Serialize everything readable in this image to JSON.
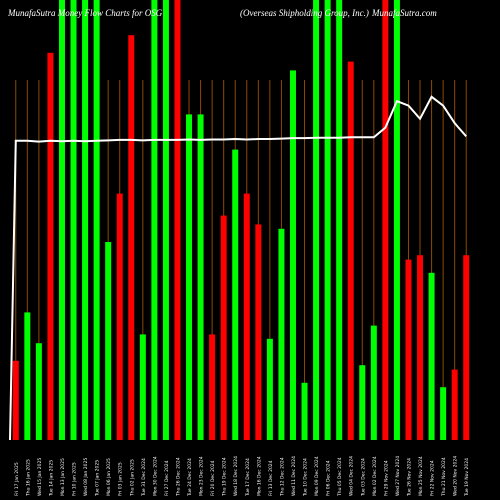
{
  "header": {
    "left": "MunafaSutra Money Flow  Charts for OSG",
    "middle": "(Overseas Shipholding Group, Inc.)",
    "right": "MunafaSutra.com"
  },
  "chart_data": {
    "type": "bar",
    "title": "MunafaSutra Money Flow  Charts for OSG",
    "subtitle": "(Overseas Shipholding Group, Inc.)",
    "ylim": [
      0,
      100
    ],
    "colors": {
      "green": "#00ff00",
      "red": "#ff0000",
      "grid": "#8a4a00",
      "line": "#ffffff",
      "background": "#000000"
    },
    "categories": [
      "Fri 17 Jan 2025",
      "Thu 16 Jan 2025",
      "Wed 15 Jan 2025",
      "Tue 14 Jan 2025",
      "Mon 13 Jan 2025",
      "Fri 10 Jan 2025",
      "Wed 08 Jan 2025",
      "Tue 07 Jan 2025",
      "Mon 06 Jan 2025",
      "Fri 03 Jan 2025",
      "Thu 02 Jan 2025",
      "Tue 31 Dec 2024",
      "Mon 30 Dec 2024",
      "Fri 27 Dec 2024",
      "Thu 26 Dec 2024",
      "Tue 24 Dec 2024",
      "Mon 23 Dec 2024",
      "Fri 20 Dec 2024",
      "Thu 19 Dec 2024",
      "Wed 18 Dec 2024",
      "Tue 17 Dec 2024",
      "Mon 16 Dec 2024",
      "Fri 13 Dec 2024",
      "Thu 12 Dec 2024",
      "Wed 11 Dec 2024",
      "Tue 10 Dec 2024",
      "Mon 09 Dec 2024",
      "Fri 06 Dec 2024",
      "Thu 05 Dec 2024",
      "Wed 04 Dec 2024",
      "Tue 03 Dec 2024",
      "Mon 02 Dec 2024",
      "Fri 29 Nov 2024",
      "Wed 27 Nov 2024",
      "Tue 26 Nov 2024",
      "Mon 25 Nov 2024",
      "Fri 22 Nov 2024",
      "Thu 21 Nov 2024",
      "Wed 20 Nov 2024",
      "Tue 19 Nov 2024"
    ],
    "colors_seq": [
      "red",
      "green",
      "green",
      "red",
      "green",
      "green",
      "green",
      "green",
      "green",
      "red",
      "red",
      "green",
      "green",
      "green",
      "red",
      "green",
      "green",
      "red",
      "red",
      "green",
      "red",
      "red",
      "green",
      "green",
      "green",
      "green",
      "green",
      "green",
      "green",
      "red",
      "green",
      "green",
      "red",
      "green",
      "red",
      "red",
      "green",
      "green",
      "red",
      "red"
    ],
    "values": [
      18,
      29,
      22,
      88,
      100,
      100,
      100,
      100,
      45,
      56,
      92,
      24,
      100,
      100,
      100,
      74,
      74,
      24,
      51,
      66,
      56,
      49,
      23,
      48,
      84,
      13,
      100,
      100,
      100,
      86,
      17,
      26,
      100,
      100,
      41,
      42,
      38,
      12,
      16,
      42
    ],
    "line": [
      68,
      68,
      67.8,
      68,
      67.9,
      68,
      67.9,
      68,
      68.1,
      68.2,
      68.2,
      68.1,
      68.2,
      68.2,
      68.2,
      68.3,
      68.2,
      68.3,
      68.3,
      68.4,
      68.3,
      68.4,
      68.4,
      68.5,
      68.6,
      68.6,
      68.7,
      68.7,
      68.7,
      68.8,
      68.8,
      68.8,
      71,
      77,
      76,
      73,
      78,
      76,
      72,
      69
    ]
  }
}
